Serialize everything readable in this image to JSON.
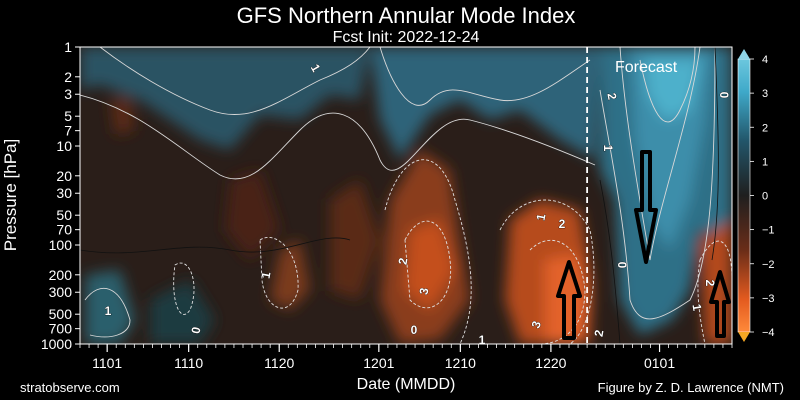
{
  "chart_data": {
    "type": "heatmap",
    "title": "GFS Northern Annular Mode Index",
    "subtitle": "Fcst Init: 2022-12-24",
    "xlabel": "Date (MMDD)",
    "ylabel": "Pressure [hPa]",
    "x_ticks": [
      "1101",
      "1110",
      "1120",
      "1201",
      "1210",
      "1220",
      "0101"
    ],
    "y_ticks": [
      1,
      2,
      3,
      5,
      7,
      10,
      20,
      30,
      50,
      70,
      100,
      200,
      300,
      500,
      700,
      1000
    ],
    "y_scale": "log",
    "y_range_hpa": [
      1000,
      1
    ],
    "x_range_days": [
      -56,
      16
    ],
    "forecast_start_day": 0,
    "forecast_label": "Forecast",
    "colorbar": {
      "range": [
        -4,
        4
      ],
      "ticks": [
        "4",
        "3",
        "2",
        "1",
        "0",
        "−1",
        "−2",
        "−3",
        "−4"
      ],
      "negative_color": "#e35a1f",
      "positive_color": "#3fa9c9",
      "neutral_color": "#222222"
    },
    "contour_labels": [
      "1",
      "2",
      "0",
      "1",
      "1",
      "2",
      "3",
      "1",
      "3",
      "2",
      "0",
      "0",
      "1",
      "1",
      "2",
      "1",
      "0",
      "2"
    ],
    "arrows": [
      {
        "direction": "down",
        "note": "forecast positive NAM descending"
      },
      {
        "direction": "up",
        "note": "negative NAM upward coupling"
      },
      {
        "direction": "up",
        "note": "negative NAM late December"
      }
    ]
  },
  "footer": {
    "left": "stratobserve.com",
    "right": "Figure by Z. D. Lawrence (NMT)"
  }
}
